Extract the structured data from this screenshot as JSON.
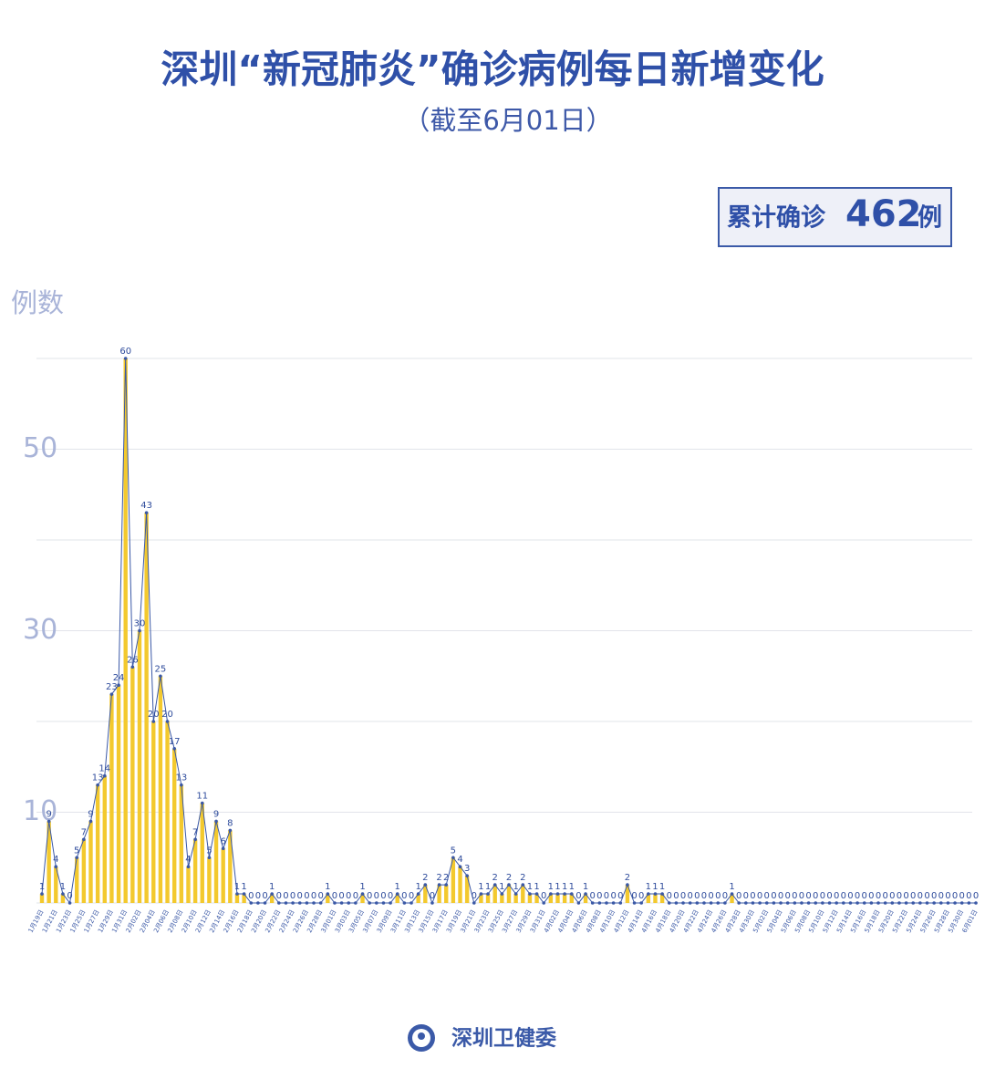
{
  "title": "深圳“新冠肺炎”确诊病例每日新增变化",
  "subtitle": "（截至6月01日）",
  "total": {
    "label": "累计确诊",
    "value": 462,
    "unit": "例"
  },
  "footer": "深圳卫健委",
  "chart_data": {
    "type": "area",
    "y_label": "例数",
    "categories": [
      "1月19日",
      null,
      "1月21日",
      null,
      "1月23日",
      null,
      "1月25日",
      null,
      "1月27日",
      null,
      "1月29日",
      null,
      "1月31日",
      null,
      "2月02日",
      null,
      "2月04日",
      null,
      "2月06日",
      null,
      "2月08日",
      null,
      "2月10日",
      null,
      "2月12日",
      null,
      "2月14日",
      null,
      "2月16日",
      null,
      "2月18日",
      null,
      "2月20日",
      null,
      "2月22日",
      null,
      "2月24日",
      null,
      "2月26日",
      null,
      "2月28日",
      null,
      "3月01日",
      null,
      "3月03日",
      null,
      "3月05日",
      null,
      "3月07日",
      null,
      "3月09日",
      null,
      "3月11日",
      null,
      "3月13日",
      null,
      "3月15日",
      null,
      "3月17日",
      null,
      "3月19日",
      null,
      "3月21日",
      null,
      "3月23日",
      null,
      "3月25日",
      null,
      "3月27日",
      null,
      "3月29日",
      null,
      "3月31日",
      null,
      "4月02日",
      null,
      "4月04日",
      null,
      "4月06日",
      null,
      "4月08日",
      null,
      "4月10日",
      null,
      "4月12日",
      null,
      "4月14日",
      null,
      "4月16日",
      null,
      "4月18日",
      null,
      "4月20日",
      null,
      "4月22日",
      null,
      "4月24日",
      null,
      "4月26日",
      null,
      "4月28日",
      null,
      "4月30日",
      null,
      "5月02日",
      null,
      "5月04日",
      null,
      "5月06日",
      null,
      "5月08日",
      null,
      "5月10日",
      null,
      "5月12日",
      null,
      "5月14日",
      null,
      "5月16日",
      null,
      "5月18日",
      null,
      "5月20日",
      null,
      "5月22日",
      null,
      "5月24日",
      null,
      "5月26日",
      null,
      "5月28日",
      null,
      "5月30日",
      null,
      "6月01日"
    ],
    "values": [
      1,
      9,
      4,
      1,
      0,
      5,
      7,
      9,
      13,
      14,
      23,
      24,
      60,
      26,
      30,
      43,
      20,
      25,
      20,
      17,
      13,
      4,
      7,
      11,
      5,
      9,
      6,
      8,
      1,
      1,
      0,
      0,
      0,
      1,
      0,
      0,
      0,
      0,
      0,
      0,
      0,
      1,
      0,
      0,
      0,
      0,
      1,
      0,
      0,
      0,
      0,
      1,
      0,
      0,
      1,
      2,
      0,
      2,
      2,
      5,
      4,
      3,
      0,
      1,
      1,
      2,
      1,
      2,
      1,
      2,
      1,
      1,
      0,
      1,
      1,
      1,
      1,
      0,
      1,
      0,
      0,
      0,
      0,
      0,
      2,
      0,
      0,
      1,
      1,
      1,
      0,
      0,
      0,
      0,
      0,
      0,
      0,
      0,
      0,
      1,
      0,
      0,
      0,
      0,
      0,
      0,
      0,
      0,
      0,
      0,
      0,
      0,
      0,
      0,
      0,
      0,
      0,
      0,
      0,
      0,
      0,
      0,
      0,
      0,
      0,
      0,
      0,
      0,
      0,
      0,
      0,
      0,
      0,
      0,
      0
    ],
    "line_color": "#3a58a6",
    "fill_color": "#f3c92e",
    "ylim": [
      0,
      60
    ],
    "yticks": [
      {
        "value": 0,
        "label": null
      },
      10,
      {
        "value": 20,
        "label": null
      },
      30,
      {
        "value": 40,
        "label": null
      },
      50,
      {
        "value": 60,
        "label": null
      }
    ],
    "grid": true
  }
}
